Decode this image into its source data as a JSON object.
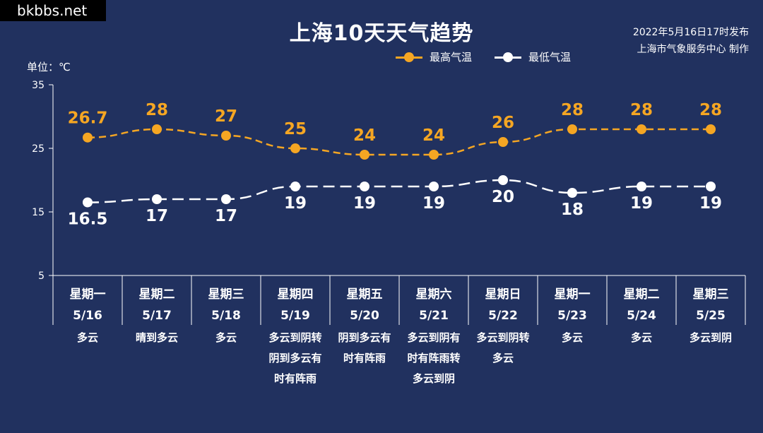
{
  "watermark": "bkbbs.net",
  "title": "上海10天天气趋势",
  "issue_time": "2022年5月16日17时发布",
  "issuer": "上海市气象服务中心 制作",
  "unit_label": "单位：℃",
  "colors": {
    "background": "#21315f",
    "high": "#f5a623",
    "low": "#ffffff",
    "axis": "#ffffff"
  },
  "chart_data": {
    "type": "line",
    "title": "上海10天天气趋势",
    "ylabel": "单位：℃",
    "ylim": [
      5,
      35
    ],
    "yticks": [
      5,
      15,
      25,
      35
    ],
    "legend_position": "top-right",
    "grid": false,
    "x": [
      "5/16",
      "5/17",
      "5/18",
      "5/19",
      "5/20",
      "5/21",
      "5/22",
      "5/23",
      "5/24",
      "5/25"
    ],
    "weekdays": [
      "星期一",
      "星期二",
      "星期三",
      "星期四",
      "星期五",
      "星期六",
      "星期日",
      "星期一",
      "星期二",
      "星期三"
    ],
    "weather": [
      [
        "多云"
      ],
      [
        "晴到多云"
      ],
      [
        "多云"
      ],
      [
        "多云到阴转",
        "阴到多云有",
        "时有阵雨"
      ],
      [
        "阴到多云有",
        "时有阵雨"
      ],
      [
        "多云到阴有",
        "时有阵雨转",
        "多云到阴"
      ],
      [
        "多云到阴转",
        "多云"
      ],
      [
        "多云"
      ],
      [
        "多云"
      ],
      [
        "多云到阴"
      ]
    ],
    "series": [
      {
        "name": "最高气温",
        "values": [
          26.7,
          28,
          27,
          25,
          24,
          24,
          26,
          28,
          28,
          28
        ],
        "labels": [
          "26.7",
          "28",
          "27",
          "25",
          "24",
          "24",
          "26",
          "28",
          "28",
          "28"
        ]
      },
      {
        "name": "最低气温",
        "values": [
          16.5,
          17,
          17,
          19,
          19,
          19,
          20,
          18,
          19,
          19
        ],
        "labels": [
          "16.5",
          "17",
          "17",
          "19",
          "19",
          "19",
          "20",
          "18",
          "19",
          "19"
        ]
      }
    ]
  }
}
